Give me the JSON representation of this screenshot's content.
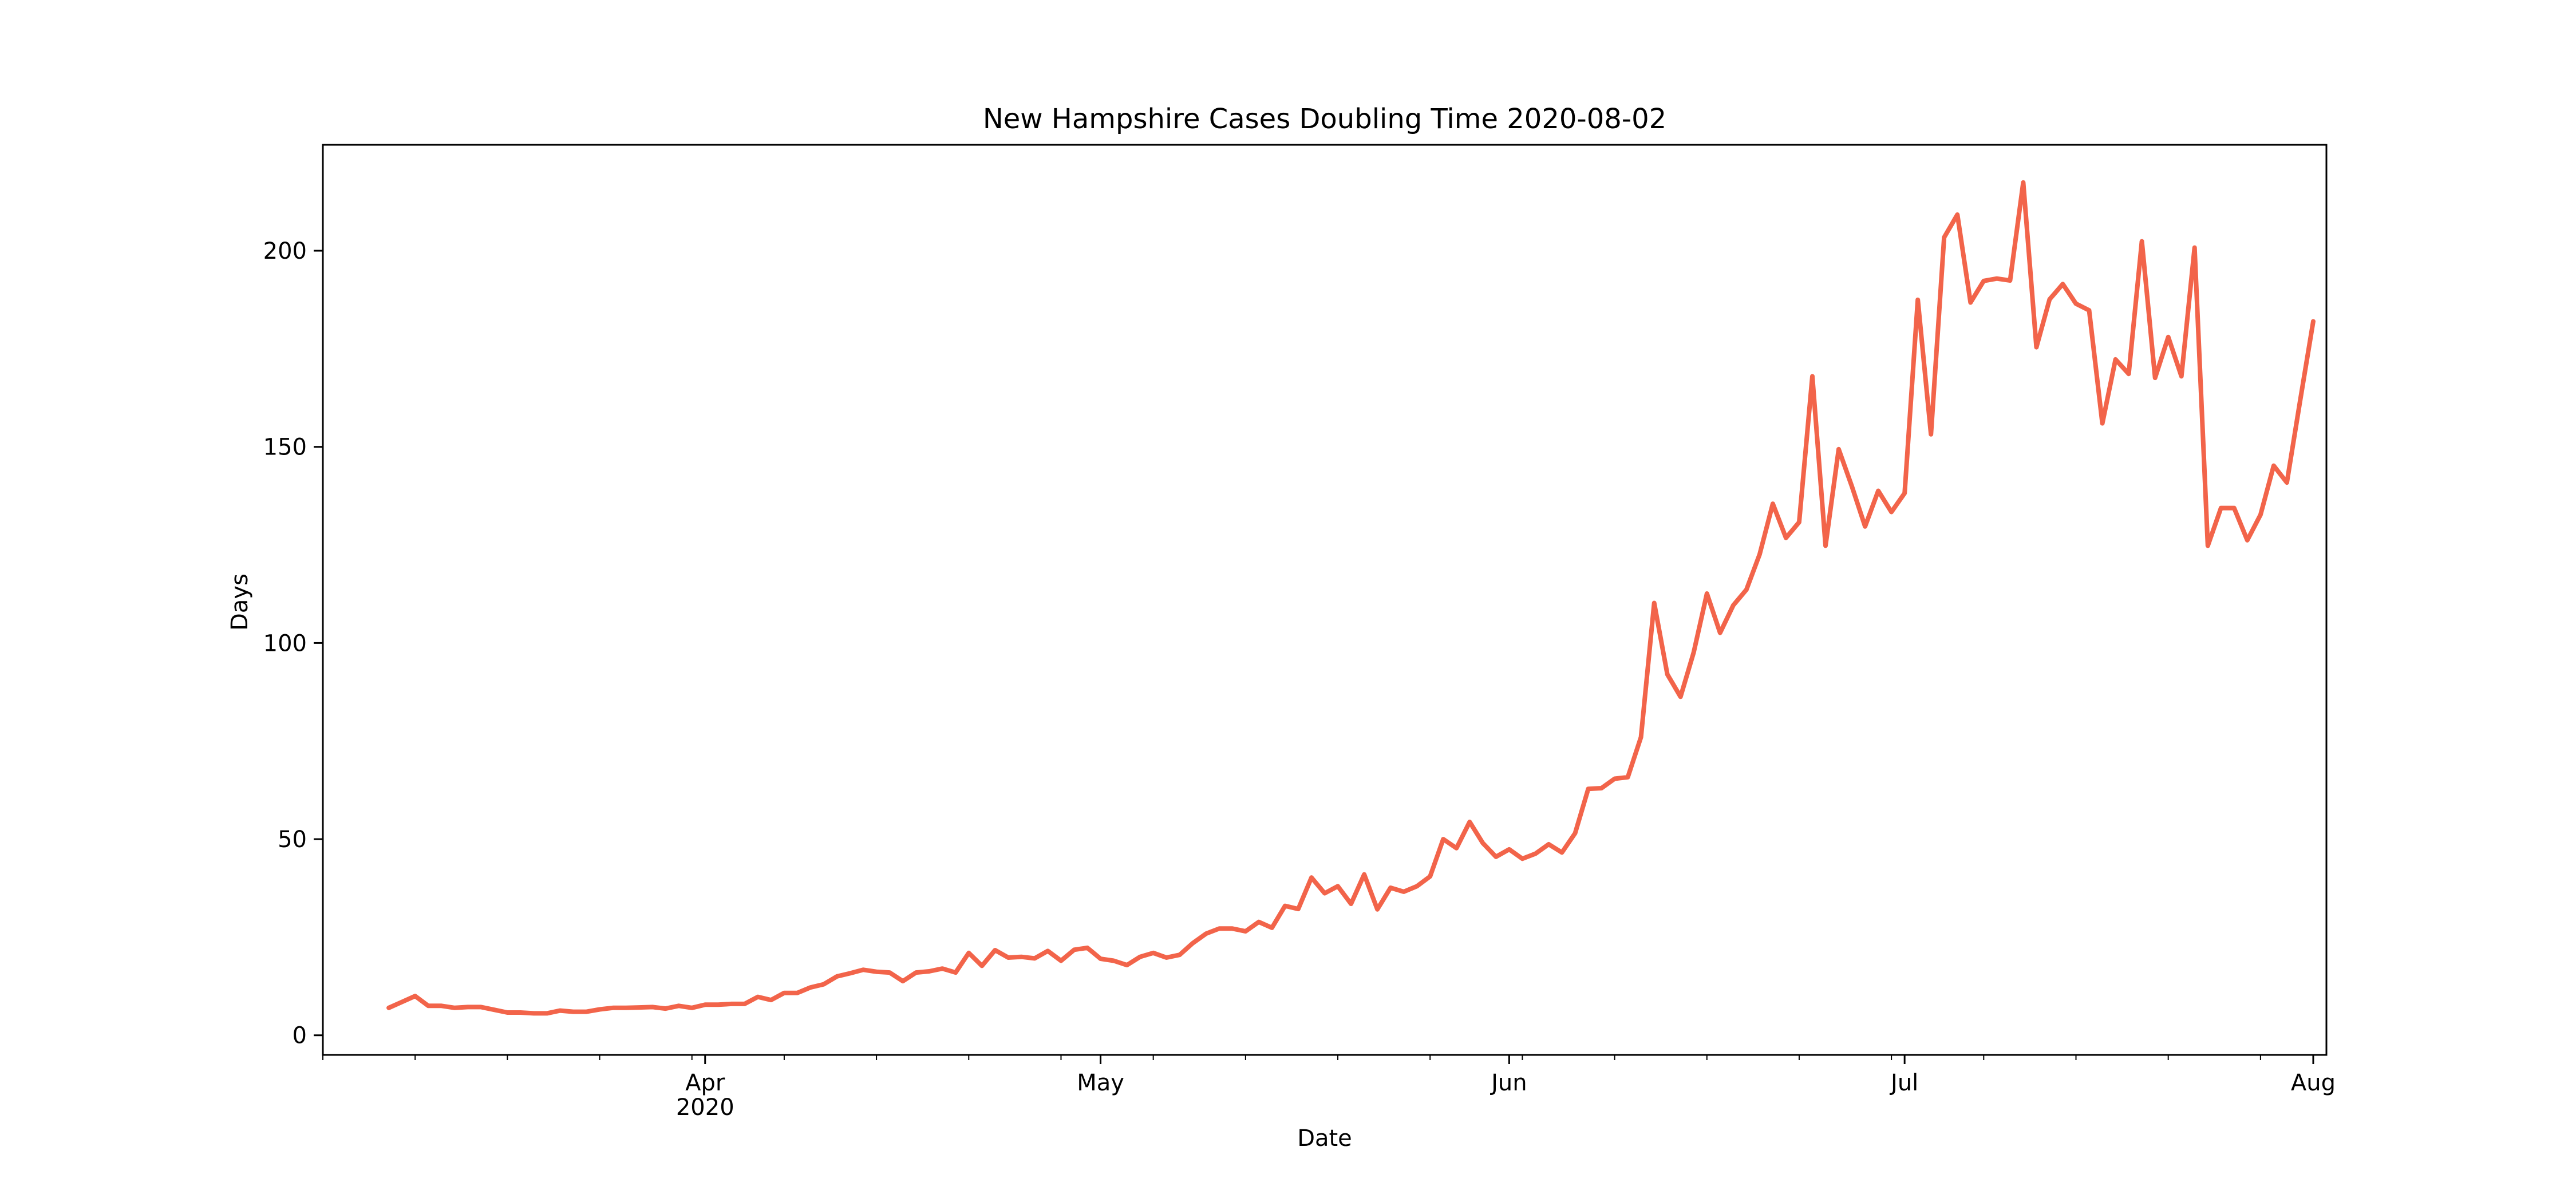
{
  "chart_data": {
    "type": "line",
    "title": "New Hampshire Cases Doubling Time 2020-08-02",
    "xlabel": "Date",
    "ylabel": "Days",
    "ylim": [
      -5,
      227
    ],
    "xlim": [
      "2020-03-03",
      "2020-08-02"
    ],
    "y_ticks": [
      0,
      50,
      100,
      150,
      200
    ],
    "x_major_ticks": [
      {
        "date": "2020-04-01",
        "label": "Apr",
        "sublabel": "2020"
      },
      {
        "date": "2020-05-01",
        "label": "May",
        "sublabel": ""
      },
      {
        "date": "2020-06-01",
        "label": "Jun",
        "sublabel": ""
      },
      {
        "date": "2020-07-01",
        "label": "Jul",
        "sublabel": ""
      },
      {
        "date": "2020-08-01",
        "label": "Aug",
        "sublabel": ""
      }
    ],
    "x_minor_tick_dates": [
      "2020-03-03",
      "2020-03-10",
      "2020-03-17",
      "2020-03-24",
      "2020-03-31",
      "2020-04-07",
      "2020-04-14",
      "2020-04-21",
      "2020-04-28",
      "2020-05-05",
      "2020-05-12",
      "2020-05-19",
      "2020-05-26",
      "2020-06-02",
      "2020-06-09",
      "2020-06-16",
      "2020-06-23",
      "2020-06-30",
      "2020-07-07",
      "2020-07-14",
      "2020-07-21",
      "2020-07-28"
    ],
    "grid": false,
    "line_color": "#f2644a",
    "series": [
      {
        "start_date": "2020-03-08",
        "values": [
          7,
          8.5,
          10,
          7.5,
          7.5,
          7,
          7.2,
          7.2,
          6.5,
          5.8,
          5.8,
          5.6,
          5.6,
          6.3,
          6,
          6,
          6.6,
          7,
          7,
          7.1,
          7.2,
          6.8,
          7.5,
          7,
          7.8,
          7.8,
          8,
          8,
          9.8,
          9,
          10.8,
          10.8,
          12.2,
          13,
          15,
          15.8,
          16.7,
          16.2,
          16,
          13.8,
          16,
          16.3,
          17,
          16,
          21,
          17.7,
          21.7,
          19.8,
          20,
          19.6,
          21.5,
          19,
          21.8,
          22.3,
          19.5,
          19,
          17.9,
          20,
          21,
          19.8,
          20.5,
          23.5,
          25.9,
          27.2,
          27.2,
          26.5,
          28.9,
          27.4,
          33,
          32.2,
          40.2,
          36.2,
          38,
          33.5,
          41,
          32.1,
          37.6,
          36.6,
          38,
          40.5,
          50,
          47.7,
          54.4,
          49,
          45.5,
          47.4,
          45,
          46.3,
          48.7,
          46.6,
          51.5,
          62.8,
          63,
          65.4,
          65.8,
          76,
          110.2,
          92,
          86.3,
          97.6,
          112.6,
          102.6,
          109.6,
          113.6,
          122.6,
          135.5,
          126.8,
          130.8,
          168,
          124.8,
          149.4,
          139.9,
          129.7,
          138.8,
          133.4,
          138.2,
          187.5,
          153.2,
          203.4,
          209.2,
          186.8,
          192.3,
          192.9,
          192.4,
          217.4,
          175.4,
          187.6,
          191.5,
          186.5,
          184.8,
          156,
          172.3,
          168.6,
          202.4,
          167.6,
          178,
          168,
          200.8,
          124.8,
          134.4,
          134.4,
          126.2,
          132.7,
          145.2,
          140.9,
          161.6,
          182
        ]
      }
    ]
  }
}
